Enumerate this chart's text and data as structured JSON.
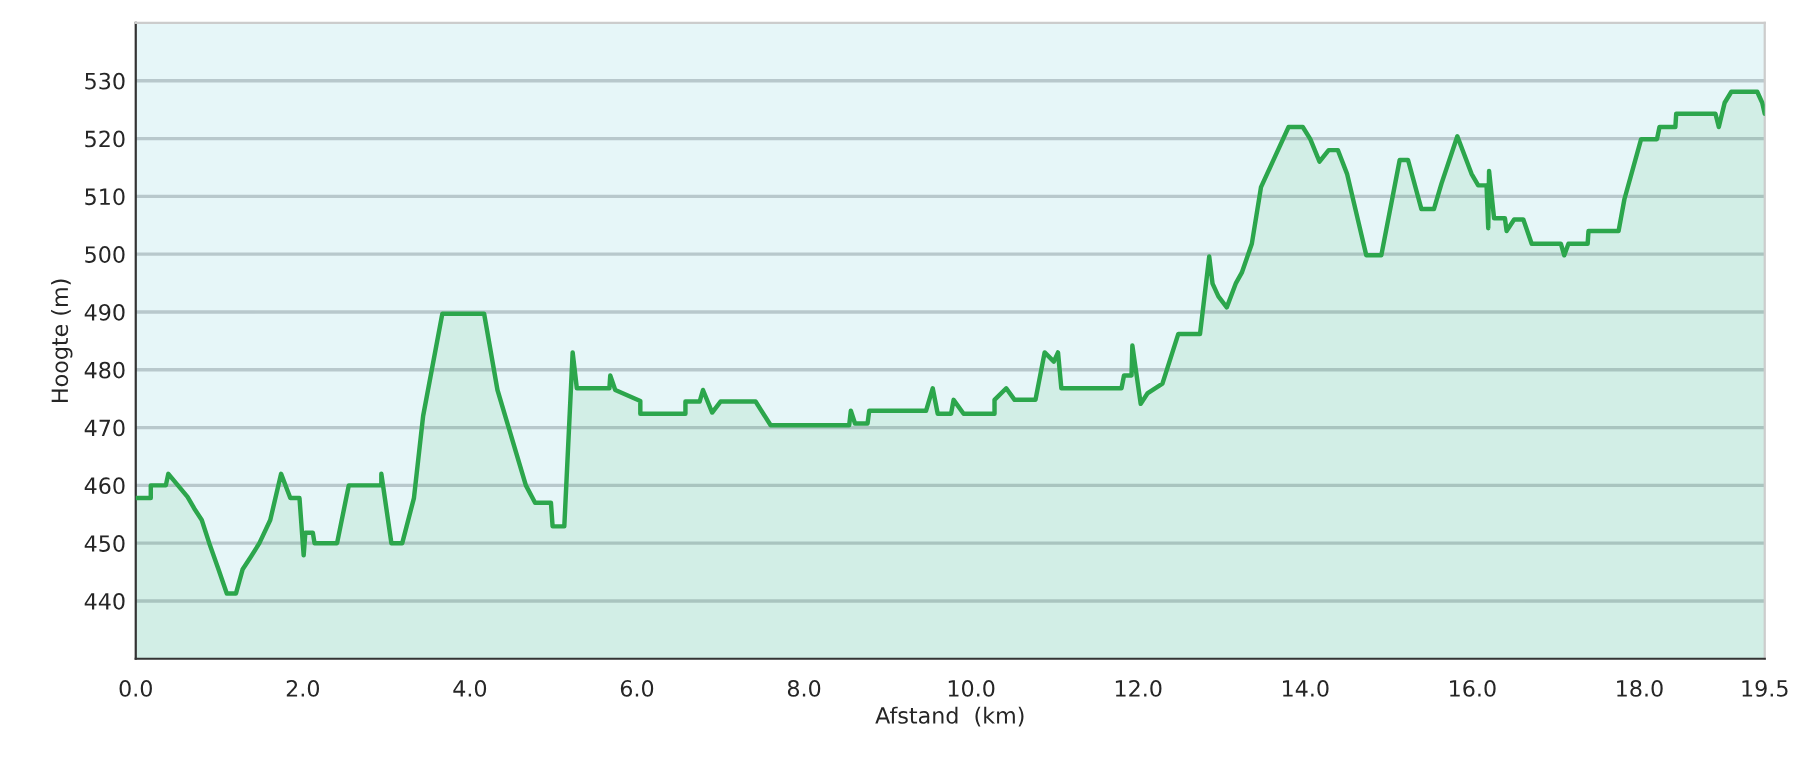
{
  "chart_data": {
    "type": "area",
    "xlabel": "Afstand  (km)",
    "ylabel": "Hoogte (m)",
    "xlim": [
      0,
      19.5
    ],
    "xticks": [
      {
        "value": 0,
        "label": "0.0"
      },
      {
        "value": 2,
        "label": "2.0"
      },
      {
        "value": 4,
        "label": "4.0"
      },
      {
        "value": 6,
        "label": "6.0"
      },
      {
        "value": 8,
        "label": "8.0"
      },
      {
        "value": 10,
        "label": "10.0"
      },
      {
        "value": 12,
        "label": "12.0"
      },
      {
        "value": 14,
        "label": "14.0"
      },
      {
        "value": 16,
        "label": "16.0"
      },
      {
        "value": 18,
        "label": "18.0"
      },
      {
        "value": 19.5,
        "label": "19.5"
      }
    ],
    "ylim": [
      430,
      540
    ],
    "yticks": [
      440,
      450,
      460,
      470,
      480,
      490,
      500,
      510,
      520,
      530
    ],
    "grid": "y",
    "series": [
      {
        "color": "#2ca64c",
        "x": [
          0,
          0.18,
          0.18,
          0.36,
          0.39,
          0.62,
          0.7,
          0.79,
          0.88,
          0.99,
          1.09,
          1.2,
          1.28,
          1.38,
          1.48,
          1.61,
          1.74,
          1.85,
          1.96,
          2.01,
          2.03,
          2.12,
          2.14,
          2.41,
          2.55,
          2.94,
          2.94,
          3.06,
          3.19,
          3.33,
          3.44,
          3.67,
          4.17,
          4.33,
          4.67,
          4.78,
          4.97,
          4.99,
          5.13,
          5.23,
          5.28,
          5.67,
          5.68,
          5.74,
          6.04,
          6.04,
          6.58,
          6.58,
          6.75,
          6.79,
          6.9,
          7.0,
          7.42,
          7.6,
          8.54,
          8.56,
          8.61,
          8.76,
          8.78,
          9.46,
          9.54,
          9.6,
          9.76,
          9.79,
          9.91,
          10.28,
          10.28,
          10.42,
          10.52,
          10.77,
          10.88,
          10.99,
          11.04,
          11.08,
          11.8,
          11.83,
          11.92,
          11.93,
          12.03,
          12.11,
          12.29,
          12.48,
          12.74,
          12.85,
          12.89,
          12.96,
          13.06,
          13.17,
          13.24,
          13.36,
          13.47,
          13.61,
          13.8,
          13.97,
          14.06,
          14.17,
          14.28,
          14.39,
          14.5,
          14.73,
          14.91,
          15.13,
          15.23,
          15.39,
          15.54,
          15.63,
          15.82,
          15.99,
          16.07,
          16.17,
          16.19,
          16.2,
          16.26,
          16.39,
          16.41,
          16.5,
          16.61,
          16.71,
          17.06,
          17.1,
          17.15,
          17.38,
          17.39,
          17.75,
          17.82,
          18.02,
          18.21,
          18.24,
          18.43,
          18.44,
          18.91,
          18.95,
          19.02,
          19.1,
          19.41,
          19.47,
          19.5
        ],
        "values": [
          457.8,
          457.8,
          460,
          460,
          462,
          458,
          456,
          454,
          450,
          445.5,
          441.3,
          441.3,
          445.5,
          447.7,
          450,
          454,
          462,
          457.8,
          457.8,
          447.9,
          451.8,
          451.8,
          450,
          450,
          460,
          460,
          462,
          450,
          450,
          457.8,
          472,
          489.7,
          489.7,
          476.5,
          460,
          457,
          457,
          452.9,
          452.9,
          483,
          476.8,
          476.8,
          479,
          476.5,
          474.6,
          472.4,
          472.4,
          474.5,
          474.5,
          476.5,
          472.6,
          474.5,
          474.5,
          470.4,
          470.4,
          472.9,
          470.7,
          470.7,
          472.9,
          472.9,
          476.8,
          472.4,
          472.4,
          474.8,
          472.4,
          472.4,
          474.8,
          476.8,
          474.8,
          474.8,
          483,
          481.4,
          483,
          476.8,
          476.8,
          479,
          479,
          484.2,
          474.1,
          475.9,
          477.6,
          486.2,
          486.2,
          499.6,
          494.9,
          492.7,
          490.8,
          495,
          496.8,
          501.8,
          511.6,
          516,
          522,
          522,
          519.9,
          516,
          518,
          518,
          513.9,
          499.8,
          499.8,
          516.3,
          516.3,
          507.8,
          507.8,
          512.2,
          520.4,
          513.9,
          511.9,
          511.9,
          504.5,
          514.4,
          506.2,
          506.2,
          504,
          506,
          506,
          501.8,
          501.8,
          499.8,
          501.8,
          501.8,
          504,
          504,
          509.5,
          519.9,
          519.9,
          522,
          522,
          524.3,
          524.3,
          522,
          526.2,
          528.1,
          528.1,
          526.2,
          524.3
        ]
      }
    ]
  }
}
